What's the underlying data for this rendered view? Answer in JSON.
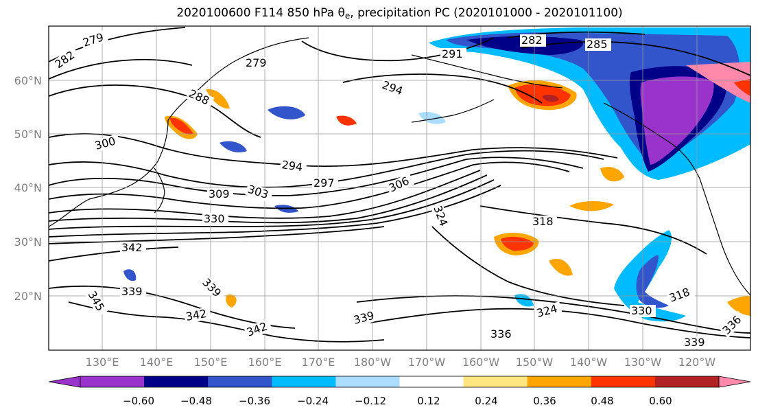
{
  "title": {
    "prefix": "2020100600 F114 850 hPa θ",
    "subscript": "e",
    "suffix": ", precipitation PC (2020101000 - 2020101100)"
  },
  "lat_labels": [
    "60°N",
    "50°N",
    "40°N",
    "30°N",
    "20°N"
  ],
  "lon_labels": [
    "130°E",
    "140°E",
    "150°E",
    "160°E",
    "170°E",
    "180°W",
    "170°W",
    "160°W",
    "150°W",
    "140°W",
    "130°W",
    "120°W"
  ],
  "contour_labels": [
    "279",
    "282",
    "279",
    "288",
    "300",
    "291",
    "282",
    "285",
    "294",
    "294",
    "297",
    "303",
    "309",
    "306",
    "330",
    "324",
    "318",
    "342",
    "339",
    "345",
    "339",
    "342",
    "342",
    "339",
    "324",
    "336",
    "339",
    "318",
    "330",
    "336"
  ],
  "colorbar": {
    "tick_labels": [
      "−0.60",
      "−0.48",
      "−0.36",
      "−0.24",
      "−0.12",
      "0.12",
      "0.24",
      "0.36",
      "0.48",
      "0.60"
    ],
    "colors": [
      "#9933cc",
      "#000088",
      "#3355cc",
      "#00bbff",
      "#aaddff",
      "#ffffff",
      "#ffe680",
      "#ffa500",
      "#ff3300",
      "#b22222",
      "#ff88aa"
    ],
    "pc_color_min": "#9933cc",
    "pc_color_max": "#ff88aa"
  }
}
